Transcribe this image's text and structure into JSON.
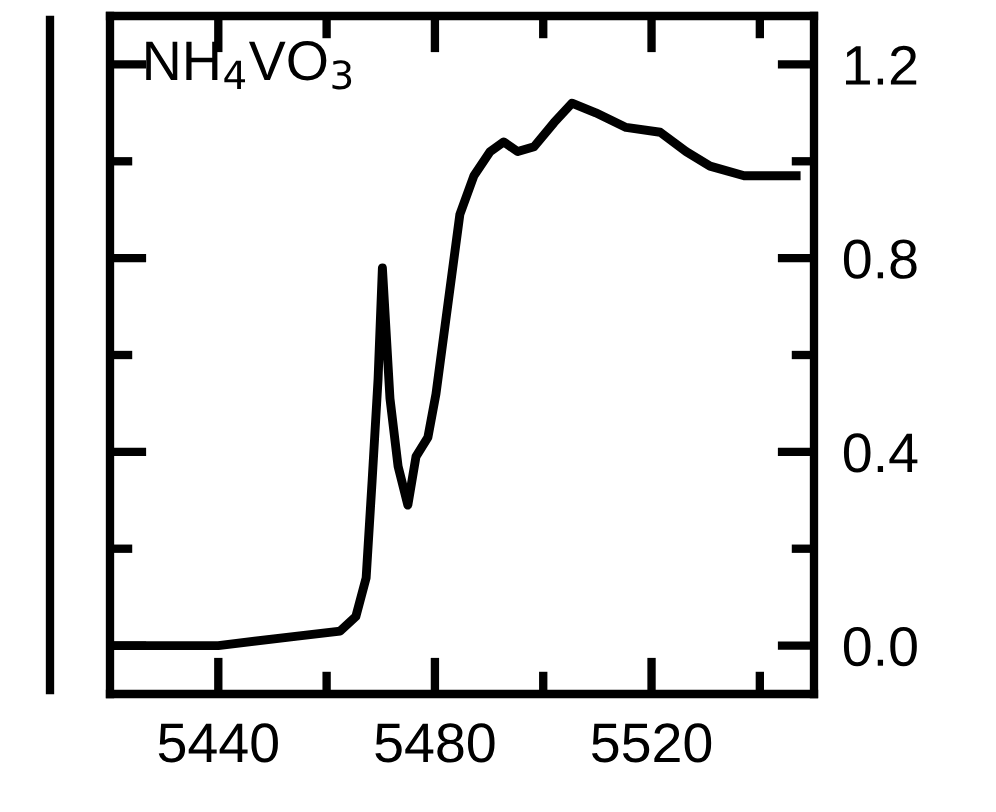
{
  "chart_data": {
    "type": "line",
    "annotations": [
      "NH$_{4}$VO$_{3}$"
    ],
    "x": [
      5420,
      5440,
      5455,
      5462.5,
      5465.4,
      5467.3,
      5468.4,
      5469.5,
      5470.3,
      5471.7,
      5473.2,
      5475.0,
      5476.5,
      5478.7,
      5480.2,
      5484.6,
      5487.2,
      5490.2,
      5492.7,
      5495.3,
      5498.3,
      5502.0,
      5505.3,
      5509.7,
      5515.3,
      5521.6,
      5526.4,
      5530.8,
      5537.1,
      5546.7
    ],
    "series": [
      {
        "color": "#000000",
        "values": [
          0.0,
          0.0,
          0.02,
          0.03,
          0.06,
          0.14,
          0.34,
          0.55,
          0.78,
          0.51,
          0.37,
          0.29,
          0.39,
          0.43,
          0.52,
          0.89,
          0.97,
          1.02,
          1.04,
          1.02,
          1.03,
          1.08,
          1.12,
          1.1,
          1.07,
          1.06,
          1.02,
          0.99,
          0.97,
          0.97
        ]
      }
    ],
    "xlim": [
      5420,
      5550
    ],
    "ylim": [
      -0.1,
      1.3
    ],
    "xticks": [
      5440,
      {
        "value": 5460,
        "label": null
      },
      5480,
      {
        "value": 5500,
        "label": null
      },
      5520,
      {
        "value": 5540,
        "label": null
      }
    ],
    "yticks": [
      {
        "value": 0,
        "label": "0.0"
      },
      {
        "value": 0.2,
        "label": null
      },
      0.4,
      {
        "value": 0.6,
        "label": null
      },
      0.8,
      {
        "value": 1.0,
        "label": null
      },
      1.2
    ],
    "grid": false,
    "legend": false,
    "marker": "none",
    "line_style": "solid"
  }
}
